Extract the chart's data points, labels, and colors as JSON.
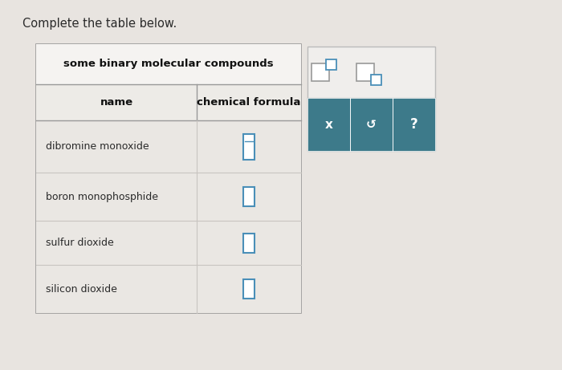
{
  "title": "Complete the table below.",
  "table_header": "some binary molecular compounds",
  "col1_header": "name",
  "col2_header": "chemical formula",
  "rows": [
    "dibromine monoxide",
    "boron monophosphide",
    "sulfur dioxide",
    "silicon dioxide"
  ],
  "bg_color": "#c8c8c8",
  "page_bg": "#e8e4e0",
  "table_bg": "#f5f3f1",
  "header_bg": "#f0ede9",
  "subhdr_bg": "#edebe7",
  "row_bg": "#eae7e3",
  "table_border": "#999999",
  "inner_border": "#c8c4c0",
  "title_color": "#2a2a2a",
  "header_text": "#111111",
  "cell_text": "#2a2a2a",
  "input_box_color": "#4a8fb8",
  "input_box_gray": "#999999",
  "teal": "#3d7a8a",
  "teal_text": "#ffffff",
  "widget_border": "#bbbbbb",
  "widget_top_bg": "#f0eeec",
  "widget_split_bg": "#e8e5e2"
}
